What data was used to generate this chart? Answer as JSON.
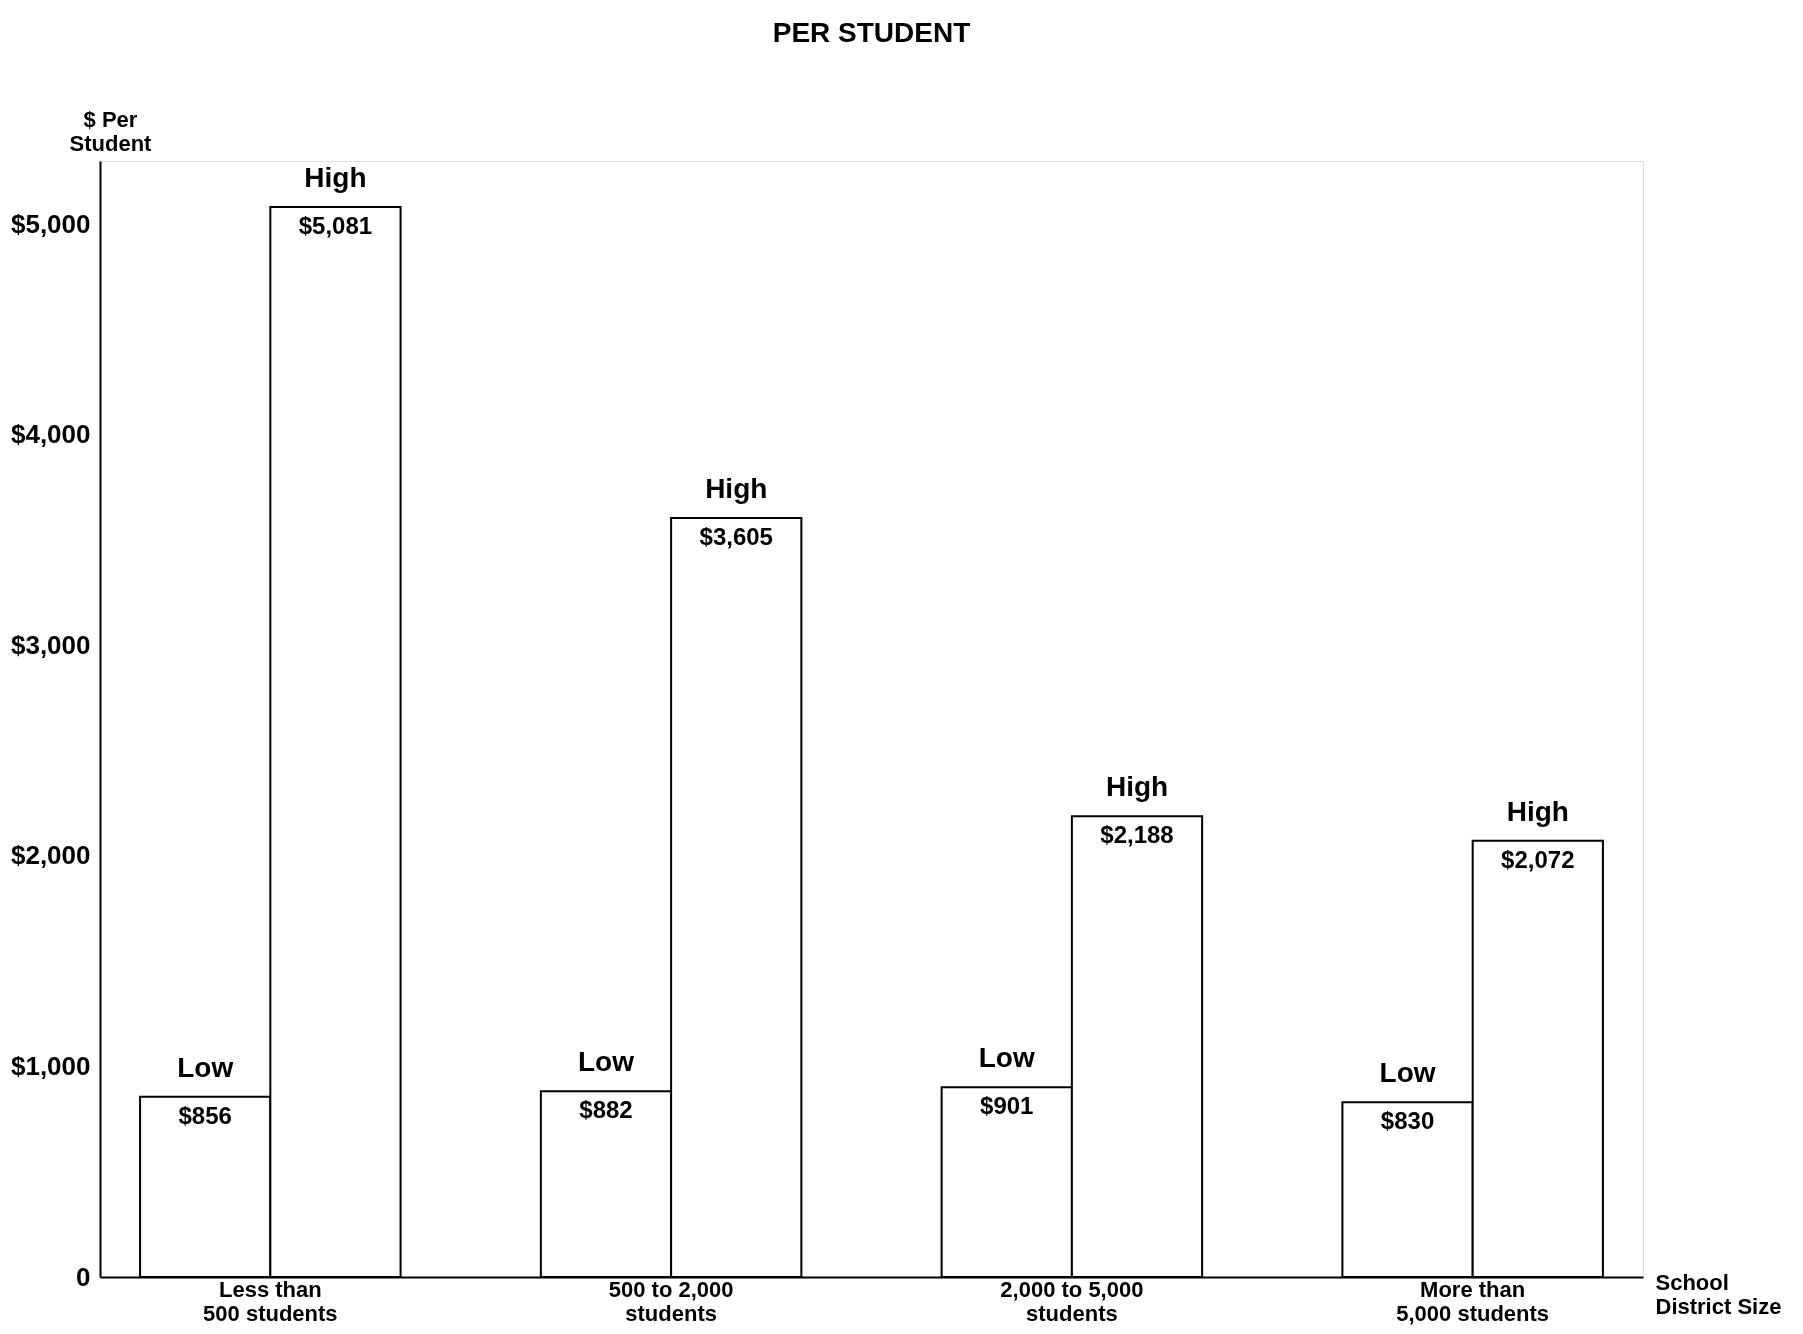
{
  "chart_data": {
    "type": "bar",
    "title": "PER STUDENT",
    "ylabel": "$ Per\nStudent",
    "xlabel": "School\nDistrict Size",
    "categories": [
      "Less than\n500 students",
      "500 to 2,000\nstudents",
      "2,000 to 5,000\nstudents",
      "More than\n5,000 students"
    ],
    "series": [
      {
        "name": "Low",
        "color": "#ffffff",
        "values": [
          856,
          882,
          901,
          830
        ]
      },
      {
        "name": "High",
        "color": "#ffffff",
        "values": [
          5081,
          3605,
          2188,
          2072
        ]
      }
    ],
    "ylim": [
      0,
      5300
    ],
    "yticks": [
      0,
      {
        "value": 1000,
        "label": "$1,000"
      },
      {
        "value": 2000,
        "label": "$2,000"
      },
      {
        "value": 3000,
        "label": "$3,000"
      },
      {
        "value": 4000,
        "label": "$4,000"
      },
      {
        "value": 5000,
        "label": "$5,000"
      }
    ],
    "value_labels": [
      [
        "$856",
        "$882",
        "$901",
        "$830"
      ],
      [
        "$5,081",
        "$3,605",
        "$2,188",
        "$2,072"
      ]
    ],
    "grid": false
  }
}
